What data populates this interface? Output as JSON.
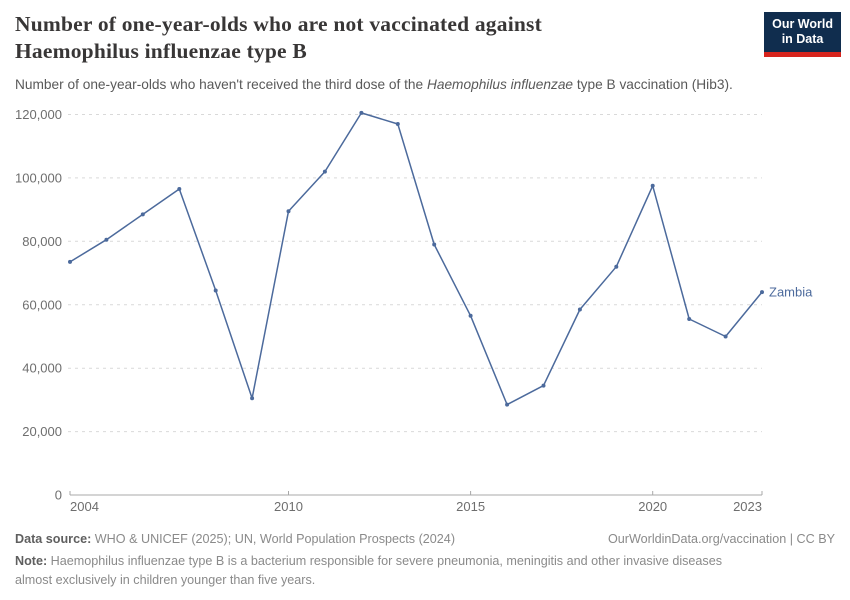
{
  "header": {
    "title_line1": "Number of one-year-olds who are not vaccinated against",
    "title_line2": "Haemophilus influenzae type B",
    "subtitle_prefix": "Number of one-year-olds who haven't received the third dose of the ",
    "subtitle_italic": "Haemophilus influenzae",
    "subtitle_suffix": " type B vaccination (Hib3).",
    "logo": {
      "line1": "Our World",
      "line2": "in Data"
    }
  },
  "chart_data": {
    "type": "line",
    "title": "Number of one-year-olds who are not vaccinated against Haemophilus influenzae type B",
    "xlabel": "",
    "ylabel": "",
    "x": [
      2004,
      2005,
      2006,
      2007,
      2008,
      2009,
      2010,
      2011,
      2012,
      2013,
      2014,
      2015,
      2016,
      2017,
      2018,
      2019,
      2020,
      2021,
      2022,
      2023
    ],
    "series": [
      {
        "name": "Zambia",
        "values": [
          73500,
          80500,
          88500,
          96500,
          64500,
          30500,
          89500,
          102000,
          120500,
          117000,
          79000,
          56500,
          28500,
          34500,
          58500,
          72000,
          97500,
          55500,
          50000,
          64000
        ]
      }
    ],
    "xlim": [
      2004,
      2023
    ],
    "ylim": [
      0,
      120000
    ],
    "x_ticks": [
      2004,
      2010,
      2015,
      2020,
      2023
    ],
    "y_ticks": [
      0,
      20000,
      40000,
      60000,
      80000,
      100000,
      120000
    ],
    "y_tick_labels": [
      "0",
      "20,000",
      "40,000",
      "60,000",
      "80,000",
      "100,000",
      "120,000"
    ],
    "grid": "horizontal-dashed",
    "legend_position": "end-of-line-label",
    "line_color": "#4c6a9c",
    "grid_color": "#d9d9d9",
    "axis_color": "#a8a8a8",
    "tick_label_color": "#6e6e6e"
  },
  "footer": {
    "data_source_label": "Data source:",
    "data_source_text": " WHO & UNICEF (2025); UN, World Population Prospects (2024)",
    "link_text": "OurWorldinData.org/vaccination | CC BY",
    "note_label": "Note:",
    "note_text": " Haemophilus influenzae type B is a bacterium responsible for severe pneumonia, meningitis and other invasive diseases almost exclusively in children younger than five years."
  }
}
